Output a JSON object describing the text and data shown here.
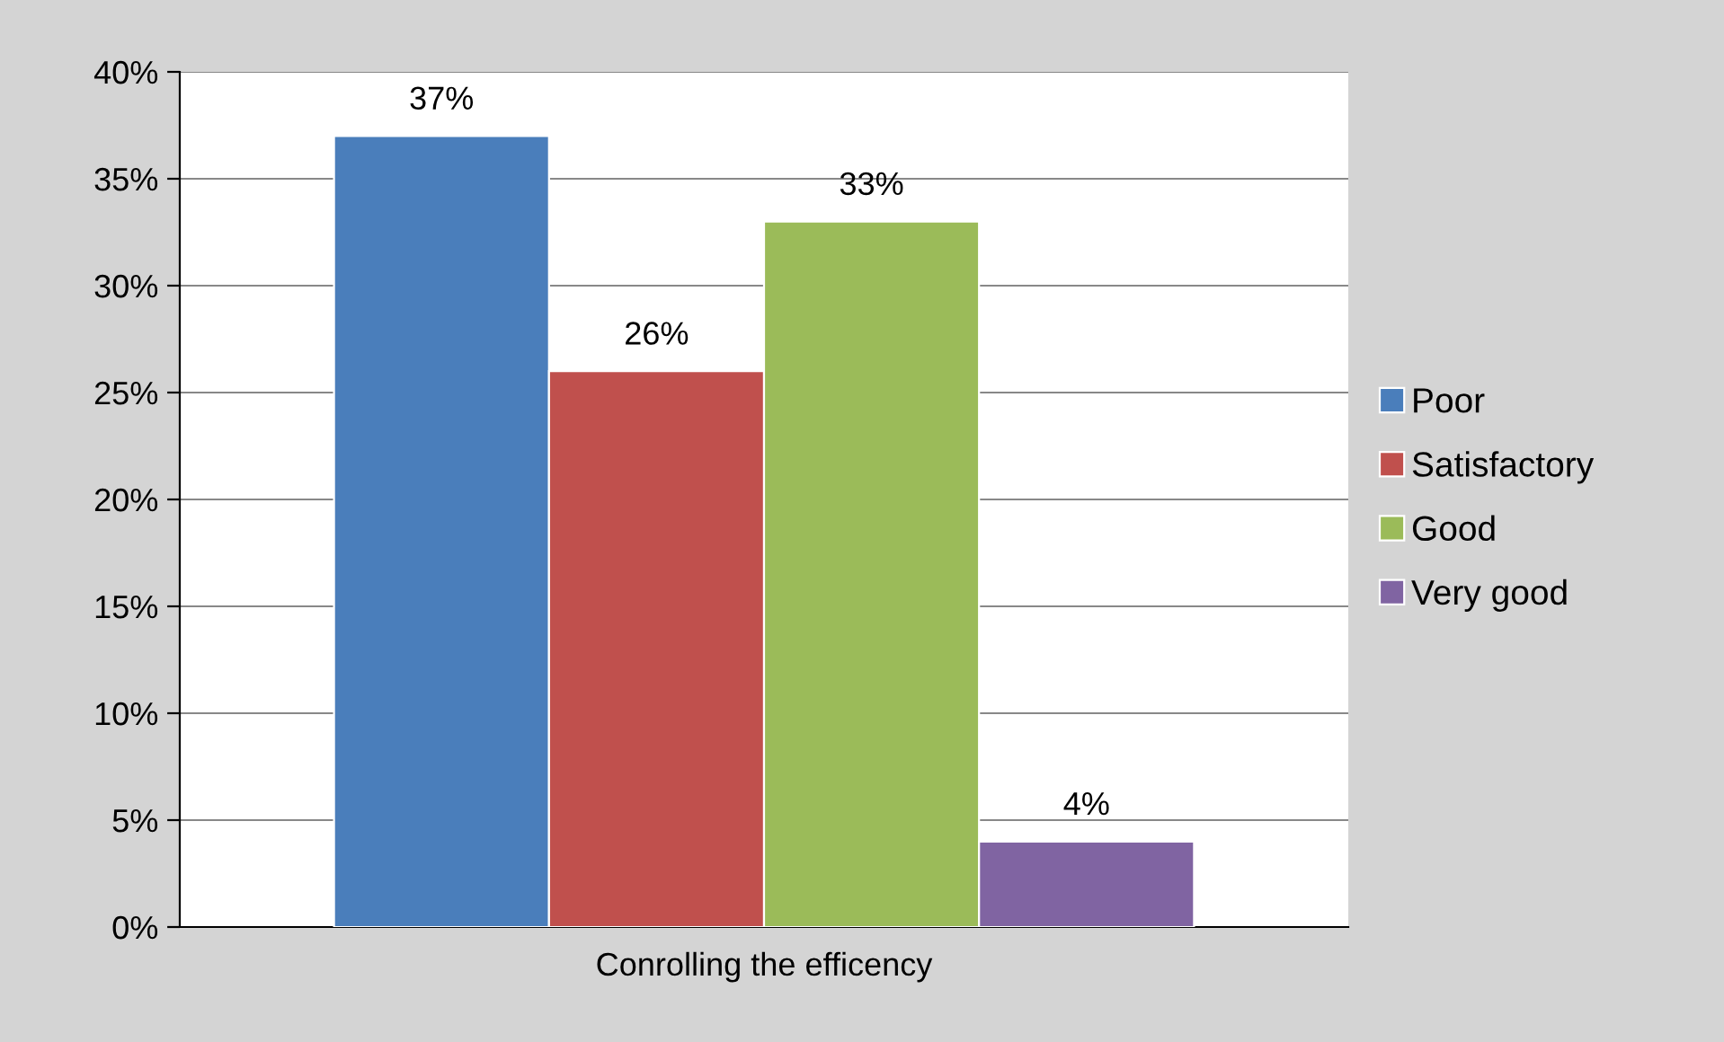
{
  "chart_data": {
    "type": "bar",
    "categories": [
      "Conrolling the efficency"
    ],
    "series": [
      {
        "name": "Poor",
        "color": "#4a7ebb",
        "values": [
          37
        ],
        "value_labels": [
          "37%"
        ]
      },
      {
        "name": "Satisfactory",
        "color": "#c0504d",
        "values": [
          26
        ],
        "value_labels": [
          "26%"
        ]
      },
      {
        "name": "Good",
        "color": "#9bbb59",
        "values": [
          33
        ],
        "value_labels": [
          "33%"
        ]
      },
      {
        "name": "Very good",
        "color": "#8064a2",
        "values": [
          4
        ],
        "value_labels": [
          "4%"
        ]
      }
    ],
    "ylim": [
      0,
      40
    ],
    "yticks": [
      {
        "value": 0,
        "label": "0%"
      },
      {
        "value": 5,
        "label": "5%"
      },
      {
        "value": 10,
        "label": "10%"
      },
      {
        "value": 15,
        "label": "15%"
      },
      {
        "value": 20,
        "label": "20%"
      },
      {
        "value": 25,
        "label": "25%"
      },
      {
        "value": 30,
        "label": "30%"
      },
      {
        "value": 35,
        "label": "35%"
      },
      {
        "value": 40,
        "label": "40%"
      }
    ],
    "grid": "y",
    "legend": "right"
  }
}
